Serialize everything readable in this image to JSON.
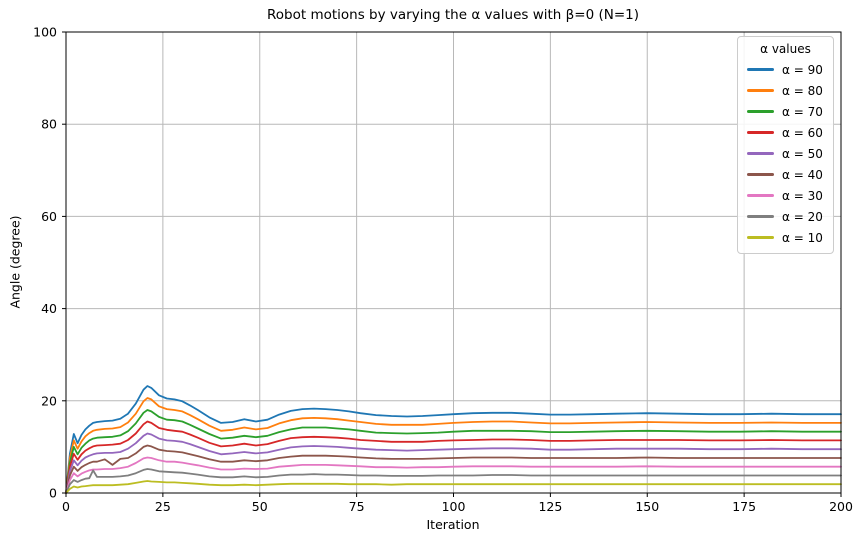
{
  "figure": {
    "title": "Robot motions by varying the α values with β=0 (N=1)",
    "xlabel": "Iteration",
    "ylabel": "Angle (degree)"
  },
  "style": {
    "background": "#ffffff",
    "grid_color": "#b8b8b8",
    "spine_color": "#000000",
    "text_color": "#000000",
    "legend_border_color": "#cccccc"
  },
  "chart_data": {
    "type": "line",
    "title": "Robot motions by varying the α values with β=0 (N=1)",
    "xlabel": "Iteration",
    "ylabel": "Angle (degree)",
    "xlim": [
      0,
      200
    ],
    "ylim": [
      0,
      100
    ],
    "xticks": [
      0,
      25,
      50,
      75,
      100,
      125,
      150,
      175,
      200
    ],
    "yticks": [
      0,
      20,
      40,
      60,
      80,
      100
    ],
    "grid": true,
    "legend_title": "α values",
    "legend_position": "upper right",
    "x": [
      0,
      1,
      2,
      3,
      4,
      5,
      6,
      7,
      8,
      10,
      12,
      14,
      16,
      18,
      20,
      21,
      22,
      24,
      26,
      28,
      30,
      32,
      34,
      37,
      40,
      43,
      46,
      49,
      52,
      55,
      58,
      61,
      64,
      67,
      70,
      73,
      76,
      80,
      84,
      88,
      92,
      96,
      100,
      105,
      110,
      115,
      120,
      125,
      130,
      136,
      142,
      150,
      158,
      166,
      174,
      182,
      190,
      200
    ],
    "series": [
      {
        "name": "α = 90",
        "alpha": 90,
        "color": "#1f77b4",
        "values": [
          0,
          8.5,
          12.8,
          10.8,
          12.6,
          13.8,
          14.6,
          15.2,
          15.4,
          15.6,
          15.7,
          16.1,
          17.2,
          19.4,
          22.4,
          23.2,
          22.8,
          21.2,
          20.5,
          20.3,
          19.9,
          19.0,
          18.0,
          16.4,
          15.2,
          15.4,
          16.0,
          15.5,
          15.9,
          17.0,
          17.8,
          18.2,
          18.3,
          18.2,
          18.0,
          17.7,
          17.3,
          16.9,
          16.7,
          16.6,
          16.7,
          16.9,
          17.1,
          17.3,
          17.4,
          17.4,
          17.2,
          17.0,
          17.0,
          17.1,
          17.2,
          17.3,
          17.2,
          17.1,
          17.1,
          17.2,
          17.1,
          17.1
        ]
      },
      {
        "name": "α = 80",
        "alpha": 80,
        "color": "#ff7f0e",
        "values": [
          0,
          7.6,
          11.4,
          9.6,
          11.2,
          12.3,
          13.0,
          13.5,
          13.7,
          13.9,
          14.0,
          14.3,
          15.3,
          17.2,
          19.9,
          20.6,
          20.3,
          18.8,
          18.2,
          18.0,
          17.7,
          16.9,
          16.0,
          14.6,
          13.5,
          13.7,
          14.2,
          13.8,
          14.1,
          15.1,
          15.8,
          16.2,
          16.3,
          16.2,
          16.0,
          15.7,
          15.4,
          15.0,
          14.8,
          14.8,
          14.8,
          15.0,
          15.2,
          15.4,
          15.5,
          15.5,
          15.3,
          15.1,
          15.1,
          15.2,
          15.3,
          15.4,
          15.3,
          15.2,
          15.2,
          15.3,
          15.2,
          15.2
        ]
      },
      {
        "name": "α = 70",
        "alpha": 70,
        "color": "#2ca02c",
        "values": [
          0,
          6.6,
          10.0,
          8.4,
          9.8,
          10.7,
          11.4,
          11.8,
          12.0,
          12.1,
          12.2,
          12.5,
          13.4,
          15.1,
          17.4,
          18.0,
          17.7,
          16.5,
          15.9,
          15.8,
          15.5,
          14.8,
          14.0,
          12.8,
          11.8,
          12.0,
          12.4,
          12.1,
          12.4,
          13.2,
          13.8,
          14.2,
          14.2,
          14.2,
          14.0,
          13.8,
          13.5,
          13.1,
          13.0,
          12.9,
          13.0,
          13.1,
          13.3,
          13.5,
          13.5,
          13.5,
          13.4,
          13.2,
          13.2,
          13.3,
          13.4,
          13.5,
          13.4,
          13.3,
          13.3,
          13.4,
          13.3,
          13.3
        ]
      },
      {
        "name": "α = 60",
        "alpha": 60,
        "color": "#d62728",
        "values": [
          0,
          5.7,
          8.5,
          7.2,
          8.4,
          9.2,
          9.7,
          10.1,
          10.3,
          10.4,
          10.5,
          10.7,
          11.5,
          12.9,
          14.9,
          15.5,
          15.2,
          14.1,
          13.7,
          13.5,
          13.3,
          12.7,
          12.0,
          10.9,
          10.1,
          10.3,
          10.7,
          10.3,
          10.6,
          11.3,
          11.9,
          12.1,
          12.2,
          12.1,
          12.0,
          11.8,
          11.5,
          11.3,
          11.1,
          11.1,
          11.1,
          11.3,
          11.4,
          11.5,
          11.6,
          11.6,
          11.5,
          11.3,
          11.3,
          11.4,
          11.5,
          11.5,
          11.5,
          11.4,
          11.4,
          11.5,
          11.4,
          11.4
        ]
      },
      {
        "name": "α = 50",
        "alpha": 50,
        "color": "#9467bd",
        "values": [
          0,
          4.7,
          7.1,
          6.0,
          7.0,
          7.7,
          8.1,
          8.4,
          8.6,
          8.7,
          8.7,
          8.9,
          9.6,
          10.8,
          12.4,
          12.9,
          12.7,
          11.8,
          11.4,
          11.3,
          11.1,
          10.6,
          10.0,
          9.1,
          8.4,
          8.6,
          8.9,
          8.6,
          8.8,
          9.4,
          9.9,
          10.1,
          10.2,
          10.1,
          10.0,
          9.8,
          9.6,
          9.4,
          9.3,
          9.2,
          9.3,
          9.4,
          9.5,
          9.6,
          9.7,
          9.7,
          9.6,
          9.4,
          9.4,
          9.5,
          9.6,
          9.6,
          9.6,
          9.5,
          9.5,
          9.6,
          9.5,
          9.5
        ]
      },
      {
        "name": "α = 40",
        "alpha": 40,
        "color": "#8c564b",
        "values": [
          0,
          3.8,
          5.7,
          4.8,
          5.6,
          6.1,
          6.5,
          6.8,
          6.8,
          7.3,
          6.1,
          7.4,
          7.6,
          8.6,
          10.0,
          10.3,
          10.1,
          9.4,
          9.1,
          9.0,
          8.8,
          8.4,
          8.0,
          7.3,
          6.8,
          6.8,
          7.1,
          6.9,
          7.1,
          7.6,
          7.9,
          8.1,
          8.1,
          8.1,
          8.0,
          7.9,
          7.7,
          7.5,
          7.4,
          7.4,
          7.4,
          7.5,
          7.6,
          7.7,
          7.7,
          7.7,
          7.6,
          7.6,
          7.6,
          7.6,
          7.6,
          7.7,
          7.6,
          7.6,
          7.6,
          7.6,
          7.6,
          7.6
        ]
      },
      {
        "name": "α = 30",
        "alpha": 30,
        "color": "#e377c2",
        "values": [
          0,
          2.8,
          4.3,
          3.6,
          4.2,
          4.6,
          4.9,
          5.1,
          5.1,
          5.2,
          5.2,
          5.4,
          5.7,
          6.5,
          7.5,
          7.7,
          7.6,
          7.1,
          6.8,
          6.8,
          6.6,
          6.3,
          6.0,
          5.5,
          5.1,
          5.1,
          5.3,
          5.2,
          5.3,
          5.7,
          5.9,
          6.1,
          6.1,
          6.1,
          6.0,
          5.9,
          5.8,
          5.6,
          5.6,
          5.5,
          5.6,
          5.6,
          5.7,
          5.8,
          5.8,
          5.8,
          5.7,
          5.7,
          5.7,
          5.7,
          5.7,
          5.8,
          5.7,
          5.7,
          5.7,
          5.7,
          5.7,
          5.7
        ]
      },
      {
        "name": "α = 20",
        "alpha": 20,
        "color": "#7f7f7f",
        "values": [
          0,
          1.9,
          2.8,
          2.4,
          2.8,
          3.1,
          3.2,
          4.9,
          3.5,
          3.5,
          3.5,
          3.6,
          3.8,
          4.3,
          5.0,
          5.2,
          5.1,
          4.7,
          4.6,
          4.5,
          4.4,
          4.2,
          4.0,
          3.6,
          3.4,
          3.4,
          3.6,
          3.4,
          3.5,
          3.8,
          4.0,
          4.0,
          4.1,
          4.0,
          4.0,
          3.9,
          3.8,
          3.8,
          3.7,
          3.7,
          3.7,
          3.8,
          3.8,
          3.8,
          3.9,
          3.9,
          3.8,
          3.8,
          3.8,
          3.8,
          3.8,
          3.8,
          3.8,
          3.8,
          3.8,
          3.8,
          3.8,
          3.8
        ]
      },
      {
        "name": "α = 10",
        "alpha": 10,
        "color": "#bcbd22",
        "values": [
          0,
          0.9,
          1.4,
          1.2,
          1.4,
          1.5,
          1.6,
          1.7,
          1.7,
          1.7,
          1.7,
          1.8,
          1.9,
          2.2,
          2.5,
          2.6,
          2.5,
          2.4,
          2.3,
          2.3,
          2.2,
          2.1,
          2.0,
          1.8,
          1.7,
          1.7,
          1.8,
          1.7,
          1.8,
          1.9,
          2.0,
          2.0,
          2.0,
          2.0,
          2.0,
          1.9,
          1.9,
          1.9,
          1.8,
          1.9,
          1.9,
          1.9,
          1.9,
          1.9,
          1.9,
          1.9,
          1.9,
          1.9,
          1.9,
          1.9,
          1.9,
          1.9,
          1.9,
          1.9,
          1.9,
          1.9,
          1.9,
          1.9
        ]
      }
    ]
  }
}
